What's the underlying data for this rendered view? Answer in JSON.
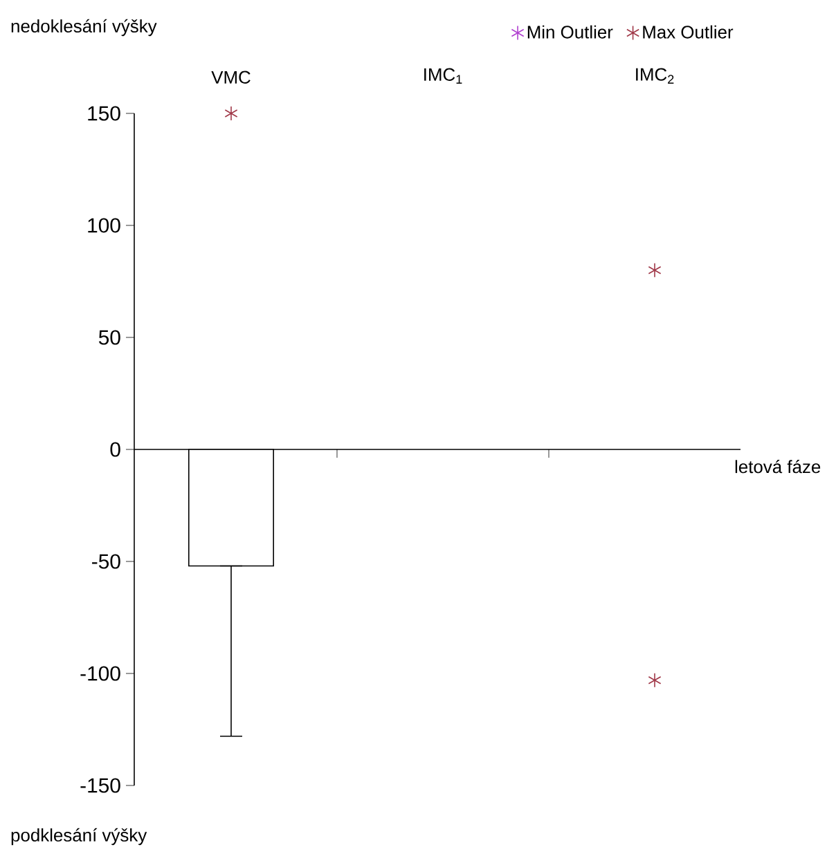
{
  "chart_data": {
    "type": "bar",
    "categories": [
      "VMC",
      "IMC$_{1}$",
      "IMC$_{2}$"
    ],
    "ylabel": "nedoklesání výšky",
    "xlabel": "letová fáze",
    "annotations": [
      "podklesání výšky"
    ],
    "ylim": [
      -150,
      150
    ],
    "yticks": [
      -150,
      -100,
      -50,
      0,
      50,
      100,
      150
    ],
    "legend": "top right",
    "marker": "cross",
    "series": [
      {
        "color": "#ffffff",
        "values": [
          -52,
          null,
          null
        ],
        "errors": [
          [
            -128,
            -52
          ],
          null,
          null
        ]
      },
      {
        "type": "scatter",
        "name": "Min Outlier",
        "color": "#b040d0",
        "values": [
          null,
          null,
          null
        ]
      },
      {
        "type": "scatter",
        "name": "Max Outlier",
        "color": "#a03848",
        "x": [
          "VMC",
          "IMC$_{2}$",
          "IMC$_{2}$"
        ],
        "values": [
          150,
          80,
          -103
        ]
      }
    ]
  }
}
